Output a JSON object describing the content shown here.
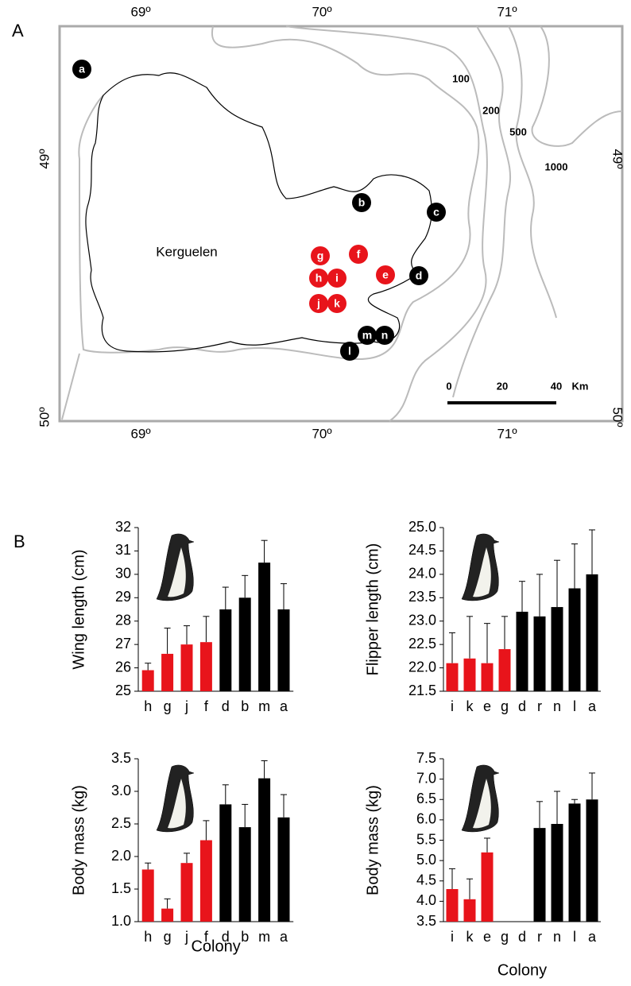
{
  "map": {
    "panel_label": "A",
    "island": "Kerguelen",
    "top_ticks": [
      "69º",
      "70º",
      "71º"
    ],
    "bottom_ticks": [
      "69º",
      "70º",
      "71º"
    ],
    "left_ticks": [
      "49º",
      "50º"
    ],
    "right_ticks": [
      "49º",
      "50º"
    ],
    "depth_labels": [
      "100",
      "200",
      "500",
      "1000"
    ],
    "colonies": [
      {
        "label": "a",
        "color": "#000000"
      },
      {
        "label": "b",
        "color": "#000000"
      },
      {
        "label": "c",
        "color": "#000000"
      },
      {
        "label": "d",
        "color": "#000000"
      },
      {
        "label": "e",
        "color": "#e8141b"
      },
      {
        "label": "f",
        "color": "#e8141b"
      },
      {
        "label": "g",
        "color": "#e8141b"
      },
      {
        "label": "h",
        "color": "#e8141b"
      },
      {
        "label": "i",
        "color": "#e8141b"
      },
      {
        "label": "j",
        "color": "#e8141b"
      },
      {
        "label": "k",
        "color": "#e8141b"
      },
      {
        "label": "l",
        "color": "#000000"
      },
      {
        "label": "m",
        "color": "#000000"
      },
      {
        "label": "n",
        "color": "#000000"
      }
    ],
    "scale_ticks": [
      "0",
      "20",
      "40"
    ],
    "scale_unit": "Km"
  },
  "panel_b_label": "B",
  "chart_data": [
    {
      "type": "bar",
      "y_label": "Wing length (cm)",
      "categories": [
        "h",
        "g",
        "j",
        "f",
        "d",
        "b",
        "m",
        "a"
      ],
      "values": [
        25.9,
        26.6,
        27.0,
        27.1,
        28.5,
        29.0,
        30.5,
        28.5
      ],
      "errors": [
        0.3,
        1.1,
        0.8,
        1.1,
        0.95,
        0.95,
        0.95,
        1.1
      ],
      "colors": [
        "#e8141b",
        "#e8141b",
        "#e8141b",
        "#e8141b",
        "#000000",
        "#000000",
        "#000000",
        "#000000"
      ],
      "ylim": [
        25,
        32
      ],
      "yticks": [
        25,
        26,
        27,
        28,
        29,
        30,
        31,
        32
      ]
    },
    {
      "type": "bar",
      "y_label": "Flipper length (cm)",
      "categories": [
        "i",
        "k",
        "e",
        "g",
        "d",
        "r",
        "n",
        "l",
        "a"
      ],
      "values": [
        22.1,
        22.2,
        22.1,
        22.4,
        23.2,
        23.1,
        23.3,
        23.7,
        24.0
      ],
      "errors": [
        0.65,
        0.9,
        0.85,
        0.7,
        0.65,
        0.9,
        1.0,
        0.95,
        0.95
      ],
      "colors": [
        "#e8141b",
        "#e8141b",
        "#e8141b",
        "#e8141b",
        "#000000",
        "#000000",
        "#000000",
        "#000000",
        "#000000"
      ],
      "ylim": [
        21.5,
        25
      ],
      "yticks": [
        21.5,
        {
          "value": 22,
          "label": "22.0"
        },
        22.5,
        {
          "value": 23,
          "label": "23.0"
        },
        23.5,
        {
          "value": 24,
          "label": "24.0"
        },
        24.5,
        {
          "value": 25,
          "label": "25.0"
        }
      ]
    },
    {
      "type": "bar",
      "y_label": "Body mass (kg)",
      "x_label": "Colony",
      "categories": [
        "h",
        "g",
        "j",
        "f",
        "d",
        "b",
        "m",
        "a"
      ],
      "values": [
        1.8,
        1.2,
        1.9,
        2.25,
        2.8,
        2.45,
        3.2,
        2.6
      ],
      "errors": [
        0.1,
        0.15,
        0.15,
        0.3,
        0.3,
        0.35,
        0.27,
        0.35
      ],
      "colors": [
        "#e8141b",
        "#e8141b",
        "#e8141b",
        "#e8141b",
        "#000000",
        "#000000",
        "#000000",
        "#000000"
      ],
      "ylim": [
        1,
        3.5
      ],
      "yticks": [
        {
          "value": 1,
          "label": "1.0"
        },
        1.5,
        {
          "value": 2,
          "label": "2.0"
        },
        2.5,
        {
          "value": 3,
          "label": "3.0"
        },
        3.5
      ]
    },
    {
      "type": "bar",
      "y_label": "Body mass (kg)",
      "x_label": "Colony",
      "categories": [
        "i",
        "k",
        "e",
        "g",
        "d",
        "r",
        "n",
        "l",
        "a"
      ],
      "values": [
        4.3,
        4.05,
        5.2,
        null,
        null,
        5.8,
        5.9,
        6.4,
        6.5
      ],
      "errors": [
        0.5,
        0.5,
        0.35,
        null,
        null,
        0.65,
        0.8,
        0.1,
        0.65
      ],
      "colors": [
        "#e8141b",
        "#e8141b",
        "#e8141b",
        "#e8141b",
        "#000000",
        "#000000",
        "#000000",
        "#000000",
        "#000000"
      ],
      "ylim": [
        3.5,
        7.5
      ],
      "yticks": [
        3.5,
        {
          "value": 4,
          "label": "4.0"
        },
        4.5,
        {
          "value": 5,
          "label": "5.0"
        },
        5.5,
        {
          "value": 6,
          "label": "6.0"
        },
        6.5,
        {
          "value": 7,
          "label": "7.0"
        },
        7.5
      ]
    }
  ]
}
